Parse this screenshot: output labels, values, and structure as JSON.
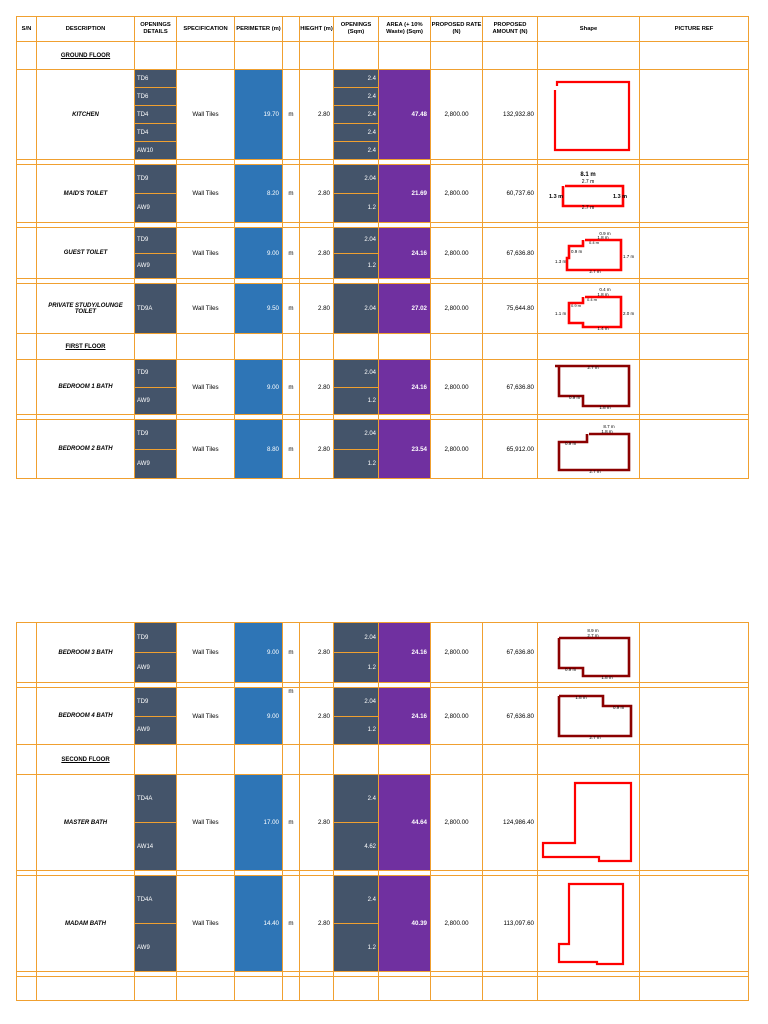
{
  "headers": {
    "sn": "S/N",
    "description": "DESCRIPTION",
    "openings": "OPENINGS DETAILS",
    "specification": "SPECIFICATION",
    "perimeter": "PERIMETER (m)",
    "height": "HIEGHT (m)",
    "openings_sqm": "OPENINGS (Sqm)",
    "area": "AREA (+ 10% Waste) (Sqm)",
    "rate": "PROPOSED RATE (N)",
    "amount": "PROPOSED AMOUNT (N)",
    "shape": "Shape",
    "picture": "PICTURE REF"
  },
  "floors": {
    "ground": "GROUND FLOOR",
    "first": "FIRST FLOOR",
    "second": "SECOND FLOOR"
  },
  "unit_m": "m",
  "rows": {
    "kitchen": {
      "name": "KITCHEN",
      "openings": [
        "TD6",
        "TD6",
        "TD4",
        "TD4",
        "AW10"
      ],
      "opening_values": [
        "2.4",
        "2.4",
        "2.4",
        "2.4",
        "2.4"
      ],
      "spec": "Wall Tiles",
      "perimeter": "19.70",
      "height": "2.80",
      "area": "47.48",
      "rate": "2,800.00",
      "amount": "132,932.80"
    },
    "maids_toilet": {
      "name": "MAID'S TOILET",
      "openings": [
        "TD9",
        "AW9"
      ],
      "opening_values": [
        "2.04",
        "1.2"
      ],
      "spec": "Wall Tiles",
      "perimeter": "8.20",
      "height": "2.80",
      "area": "21.69",
      "rate": "2,800.00",
      "amount": "60,737.60"
    },
    "guest_toilet": {
      "name": "GUEST TOILET",
      "openings": [
        "TD9",
        "AW9"
      ],
      "opening_values": [
        "2.04",
        "1.2"
      ],
      "spec": "Wall Tiles",
      "perimeter": "9.00",
      "height": "2.80",
      "area": "24.16",
      "rate": "2,800.00",
      "amount": "67,636.80"
    },
    "private_study": {
      "name": "PRIVATE STUDY/LOUNGE TOILET",
      "openings": [
        "TD9A"
      ],
      "opening_values": [
        "2.04"
      ],
      "spec": "Wall Tiles",
      "perimeter": "9.50",
      "height": "2.80",
      "area": "27.02",
      "rate": "2,800.00",
      "amount": "75,644.80"
    },
    "bedroom1": {
      "name": "BEDROOM 1 BATH",
      "openings": [
        "TD9",
        "AW9"
      ],
      "opening_values": [
        "2.04",
        "1.2"
      ],
      "spec": "Wall Tiles",
      "perimeter": "9.00",
      "height": "2.80",
      "area": "24.16",
      "rate": "2,800.00",
      "amount": "67,636.80"
    },
    "bedroom2": {
      "name": "BEDROOM 2 BATH",
      "openings": [
        "TD9",
        "AW9"
      ],
      "opening_values": [
        "2.04",
        "1.2"
      ],
      "spec": "Wall Tiles",
      "perimeter": "8.80",
      "height": "2.80",
      "area": "23.54",
      "rate": "2,800.00",
      "amount": "65,912.00"
    },
    "bedroom3": {
      "name": "BEDROOM 3 BATH",
      "openings": [
        "TD9",
        "AW9"
      ],
      "opening_values": [
        "2.04",
        "1.2"
      ],
      "spec": "Wall Tiles",
      "perimeter": "9.00",
      "height": "2.80",
      "area": "24.16",
      "rate": "2,800.00",
      "amount": "67,636.80"
    },
    "bedroom4": {
      "name": "BEDROOM 4 BATH",
      "openings": [
        "TD9",
        "AW9"
      ],
      "opening_values": [
        "2.04",
        "1.2"
      ],
      "spec": "Wall Tiles",
      "perimeter": "9.00",
      "height": "2.80",
      "area": "24.16",
      "rate": "2,800.00",
      "amount": "67,636.80"
    },
    "master_bath": {
      "name": "MASTER BATH",
      "openings": [
        "TD4A",
        "AW14"
      ],
      "opening_values": [
        "2.4",
        "4.62"
      ],
      "spec": "Wall Tiles",
      "perimeter": "17.00",
      "height": "2.80",
      "area": "44.64",
      "rate": "2,800.00",
      "amount": "124,986.40"
    },
    "madam_bath": {
      "name": "MADAM BATH",
      "openings": [
        "TD4A",
        "AW9"
      ],
      "opening_values": [
        "2.4",
        "1.2"
      ],
      "spec": "Wall Tiles",
      "perimeter": "14.40",
      "height": "2.80",
      "area": "40.39",
      "rate": "2,800.00",
      "amount": "113,097.60"
    }
  },
  "shape_labels": {
    "maids": [
      "8.1 m",
      "2.7 m",
      "1.3 m",
      "1.3 m",
      "2.7 m"
    ],
    "guest": [
      "0.9 m",
      "1.8 m",
      "0.4 m",
      "0.9 m",
      "1.7 m",
      "1.3 m",
      "2.7 m"
    ],
    "private": [
      "0.4 m",
      "1.8 m",
      "0.4 m",
      "0.9 m",
      "1.1 m",
      "2.0 m",
      "1.4 m"
    ],
    "bed1": [
      "2.7 m",
      "0.9 m",
      "1.8 m"
    ],
    "bed2": [
      "8.7 m",
      "1.8 m",
      "0.9 m",
      "2.7 m"
    ],
    "bed3": [
      "8.9 m",
      "2.7 m",
      "0.9 m",
      "1.8 m"
    ],
    "bed4": [
      "1.8 m",
      "0.9 m",
      "2.7 m"
    ]
  },
  "colors": {
    "grid": "#f0a030",
    "openings": "#44546a",
    "perimeter": "#2e75b6",
    "area": "#7030a0",
    "shape_red": "#ff0000",
    "shape_dark": "#8b0000"
  }
}
